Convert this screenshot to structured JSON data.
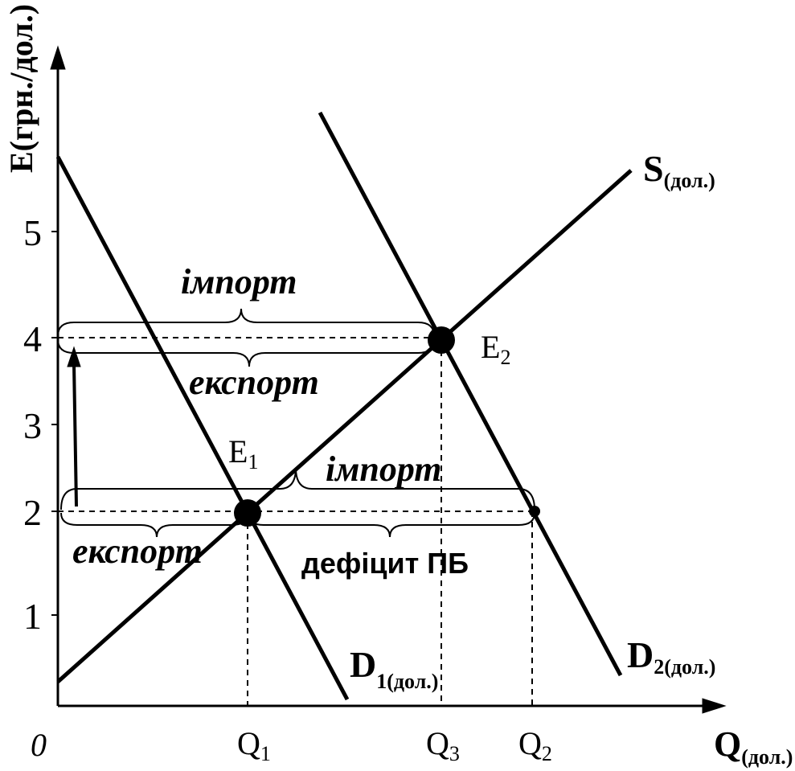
{
  "axes": {
    "y_label": "E(грн./дол.)",
    "x_label": "Q",
    "x_label_sub": "(дол.)",
    "origin": "0",
    "y_ticks": [
      "5",
      "4",
      "3",
      "2",
      "1"
    ],
    "x_ticks": [
      {
        "main": "Q",
        "sub": "1"
      },
      {
        "main": "Q",
        "sub": "3"
      },
      {
        "main": "Q",
        "sub": "2"
      }
    ]
  },
  "curves": [
    {
      "main": "S",
      "sub": "(дол.)"
    },
    {
      "main": "D",
      "sub": "1(дол.)"
    },
    {
      "main": "D",
      "sub": "2(дол.)"
    }
  ],
  "points": [
    {
      "main": "E",
      "sub": "1"
    },
    {
      "main": "E",
      "sub": "2"
    }
  ],
  "annotations": [
    "імпорт",
    "експорт",
    "імпорт",
    "експорт",
    "дефіцит ПБ"
  ]
}
